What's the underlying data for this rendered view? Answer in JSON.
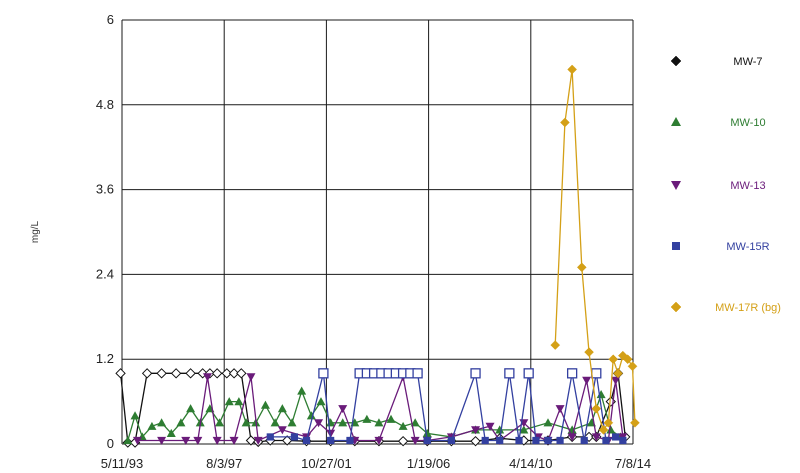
{
  "chart_data": {
    "type": "line",
    "title": "",
    "xlabel": "",
    "ylabel": "mg/L",
    "ylim": [
      0,
      6
    ],
    "yticks": [
      "0",
      "1.2",
      "2.4",
      "3.6",
      "4.8",
      "6"
    ],
    "xticks": [
      "5/11/93",
      "8/3/97",
      "10/27/01",
      "1/19/06",
      "4/14/10",
      "7/8/14"
    ],
    "grid": true,
    "legend_position": "right",
    "series": [
      {
        "name": "MW-7",
        "color": "#111111",
        "marker": "diamond-open",
        "values": [
          [
            1993.3,
            1.0
          ],
          [
            1993.6,
            0.02
          ],
          [
            1993.9,
            0.02
          ],
          [
            1994.4,
            1.0
          ],
          [
            1995.0,
            1.0
          ],
          [
            1995.6,
            1.0
          ],
          [
            1996.2,
            1.0
          ],
          [
            1996.7,
            1.0
          ],
          [
            1997.0,
            1.0
          ],
          [
            1997.3,
            1.0
          ],
          [
            1997.7,
            1.0
          ],
          [
            1998.0,
            1.0
          ],
          [
            1998.3,
            1.0
          ],
          [
            1998.7,
            0.05
          ],
          [
            1999.0,
            0.03
          ],
          [
            1999.5,
            0.05
          ],
          [
            2000.2,
            0.05
          ],
          [
            2001.0,
            0.04
          ],
          [
            2002.0,
            0.04
          ],
          [
            2003.0,
            0.04
          ],
          [
            2004.0,
            0.04
          ],
          [
            2005.0,
            0.04
          ],
          [
            2006.0,
            0.04
          ],
          [
            2007.0,
            0.04
          ],
          [
            2008.0,
            0.04
          ],
          [
            2009.0,
            0.08
          ],
          [
            2010.0,
            0.05
          ],
          [
            2011.0,
            0.05
          ],
          [
            2012.0,
            0.1
          ],
          [
            2012.7,
            0.1
          ],
          [
            2013.0,
            0.1
          ],
          [
            2013.6,
            0.6
          ],
          [
            2013.9,
            1.0
          ],
          [
            2014.2,
            0.1
          ]
        ]
      },
      {
        "name": "MW-10",
        "color": "#2e7d32",
        "marker": "triangle-up",
        "values": [
          [
            1993.6,
            0.05
          ],
          [
            1993.9,
            0.4
          ],
          [
            1994.2,
            0.1
          ],
          [
            1994.6,
            0.25
          ],
          [
            1995.0,
            0.3
          ],
          [
            1995.4,
            0.15
          ],
          [
            1995.8,
            0.3
          ],
          [
            1996.2,
            0.5
          ],
          [
            1996.6,
            0.3
          ],
          [
            1997.0,
            0.5
          ],
          [
            1997.4,
            0.3
          ],
          [
            1997.8,
            0.6
          ],
          [
            1998.2,
            0.6
          ],
          [
            1998.5,
            0.3
          ],
          [
            1998.9,
            0.3
          ],
          [
            1999.3,
            0.55
          ],
          [
            1999.7,
            0.3
          ],
          [
            2000.0,
            0.5
          ],
          [
            2000.4,
            0.3
          ],
          [
            2000.8,
            0.75
          ],
          [
            2001.2,
            0.4
          ],
          [
            2001.6,
            0.6
          ],
          [
            2002.0,
            0.3
          ],
          [
            2002.5,
            0.3
          ],
          [
            2003.0,
            0.3
          ],
          [
            2003.5,
            0.35
          ],
          [
            2004.0,
            0.3
          ],
          [
            2004.5,
            0.35
          ],
          [
            2005.0,
            0.25
          ],
          [
            2005.5,
            0.3
          ],
          [
            2006.0,
            0.15
          ],
          [
            2007.0,
            0.1
          ],
          [
            2008.0,
            0.2
          ],
          [
            2009.0,
            0.2
          ],
          [
            2010.0,
            0.2
          ],
          [
            2011.0,
            0.3
          ],
          [
            2012.0,
            0.2
          ],
          [
            2012.8,
            0.3
          ],
          [
            2013.2,
            0.7
          ],
          [
            2013.6,
            0.2
          ],
          [
            2014.0,
            0.1
          ]
        ]
      },
      {
        "name": "MW-13",
        "color": "#6a1b7a",
        "marker": "triangle-down",
        "values": [
          [
            1994.0,
            0.05
          ],
          [
            1995.0,
            0.05
          ],
          [
            1996.0,
            0.05
          ],
          [
            1996.5,
            0.05
          ],
          [
            1996.9,
            0.95
          ],
          [
            1997.3,
            0.05
          ],
          [
            1998.0,
            0.05
          ],
          [
            1998.7,
            0.95
          ],
          [
            1999.0,
            0.05
          ],
          [
            2000.0,
            0.2
          ],
          [
            2001.0,
            0.1
          ],
          [
            2001.5,
            0.3
          ],
          [
            2002.0,
            0.15
          ],
          [
            2002.5,
            0.5
          ],
          [
            2003.0,
            0.05
          ],
          [
            2004.0,
            0.05
          ],
          [
            2005.0,
            0.95
          ],
          [
            2005.5,
            0.05
          ],
          [
            2006.0,
            0.05
          ],
          [
            2007.0,
            0.1
          ],
          [
            2008.0,
            0.2
          ],
          [
            2008.6,
            0.25
          ],
          [
            2009.0,
            0.05
          ],
          [
            2010.0,
            0.3
          ],
          [
            2010.6,
            0.1
          ],
          [
            2011.0,
            0.05
          ],
          [
            2011.5,
            0.5
          ],
          [
            2012.0,
            0.1
          ],
          [
            2012.6,
            0.9
          ],
          [
            2013.0,
            0.1
          ],
          [
            2013.5,
            0.05
          ],
          [
            2013.8,
            0.9
          ],
          [
            2014.1,
            0.1
          ]
        ]
      },
      {
        "name": "MW-15R",
        "color": "#3340a0",
        "marker": "square",
        "values": [
          [
            1999.5,
            0.1
          ],
          [
            2000.5,
            0.1
          ],
          [
            2001.0,
            0.05
          ],
          [
            2001.7,
            1.0
          ],
          [
            2002.0,
            0.05
          ],
          [
            2002.8,
            0.05
          ],
          [
            2003.2,
            1.0
          ],
          [
            2003.5,
            1.0
          ],
          [
            2003.8,
            1.0
          ],
          [
            2004.1,
            1.0
          ],
          [
            2004.4,
            1.0
          ],
          [
            2004.7,
            1.0
          ],
          [
            2005.0,
            1.0
          ],
          [
            2005.3,
            1.0
          ],
          [
            2005.6,
            1.0
          ],
          [
            2006.0,
            0.05
          ],
          [
            2007.0,
            0.05
          ],
          [
            2008.0,
            1.0
          ],
          [
            2008.4,
            0.05
          ],
          [
            2009.0,
            0.05
          ],
          [
            2009.4,
            1.0
          ],
          [
            2009.8,
            0.05
          ],
          [
            2010.2,
            1.0
          ],
          [
            2010.5,
            0.05
          ],
          [
            2011.0,
            0.05
          ],
          [
            2011.5,
            0.05
          ],
          [
            2012.0,
            1.0
          ],
          [
            2012.5,
            0.05
          ],
          [
            2013.0,
            1.0
          ],
          [
            2013.4,
            0.05
          ],
          [
            2013.8,
            0.1
          ],
          [
            2014.1,
            0.05
          ]
        ]
      },
      {
        "name": "MW-17R (bg)",
        "color": "#d4a017",
        "marker": "diamond",
        "values": [
          [
            2011.3,
            1.4
          ],
          [
            2011.7,
            4.55
          ],
          [
            2012.0,
            5.3
          ],
          [
            2012.4,
            2.5
          ],
          [
            2012.7,
            1.3
          ],
          [
            2013.0,
            0.5
          ],
          [
            2013.3,
            0.2
          ],
          [
            2013.5,
            0.3
          ],
          [
            2013.7,
            1.2
          ],
          [
            2013.9,
            1.0
          ],
          [
            2014.1,
            1.25
          ],
          [
            2014.3,
            1.2
          ],
          [
            2014.5,
            1.1
          ],
          [
            2014.6,
            0.3
          ]
        ]
      }
    ]
  }
}
